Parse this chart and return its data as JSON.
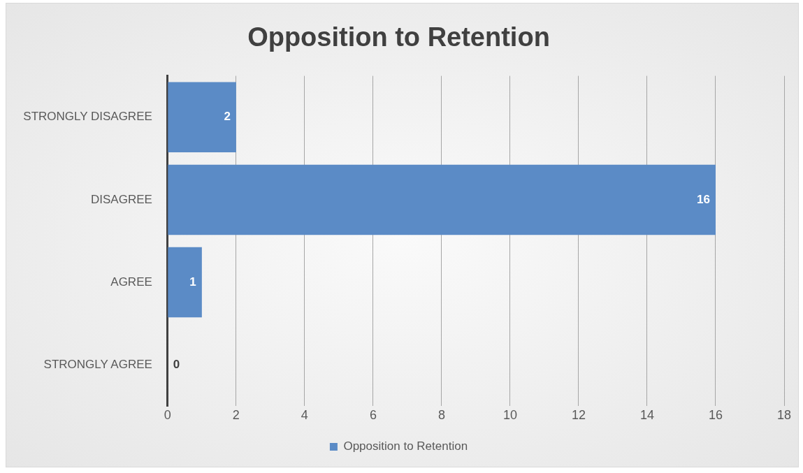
{
  "chart_data": {
    "type": "bar",
    "orientation": "horizontal",
    "title": "Opposition to Retention",
    "categories": [
      "STRONGLY DISAGREE",
      "DISAGREE",
      "AGREE",
      "STRONGLY AGREE"
    ],
    "series": [
      {
        "name": "Opposition to Retention",
        "color": "#5b8bc6",
        "values": [
          2,
          16,
          1,
          0
        ]
      }
    ],
    "xlim": [
      0,
      18
    ],
    "xticks": [
      0,
      2,
      4,
      6,
      8,
      10,
      12,
      14,
      16,
      18
    ],
    "grid": "x",
    "legend": "bottom",
    "data_labels": true
  }
}
